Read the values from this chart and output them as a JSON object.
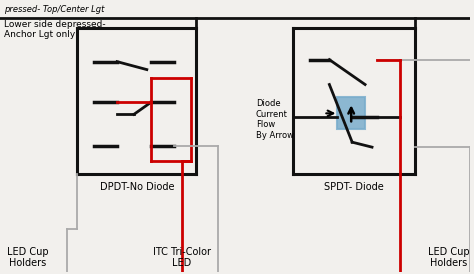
{
  "bg_color": "#f2f0ed",
  "title_top": "pressed- Top/Center Lgt",
  "label_lower_side": "Lower side depressed-\nAnchor Lgt only",
  "label_dpdt": "DPDT-No Diode",
  "label_spdt": "SPDT- Diode",
  "label_led_left": "LED Cup\nHolders",
  "label_itc": "ITC Tri-Color\nLED",
  "label_led_right": "LED Cup\nHolders",
  "label_diode": "Diode\nCurrent\nFlow\nBy Arrow",
  "box_color": "#111111",
  "red_color": "#cc0000",
  "gray_color": "#aaaaaa",
  "blue_color": "#7aadcc"
}
